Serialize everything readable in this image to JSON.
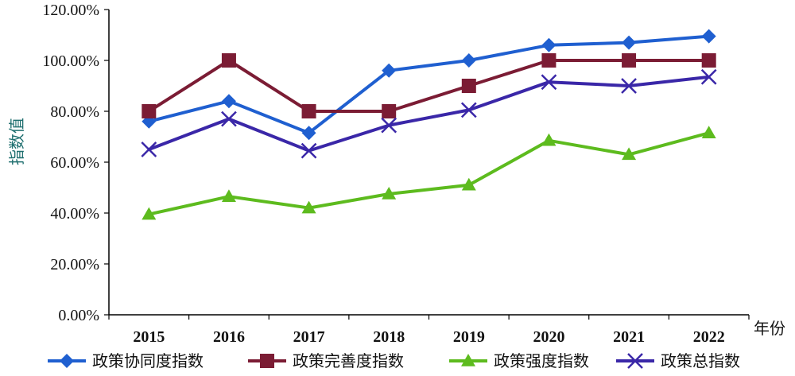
{
  "chart_data": {
    "type": "line",
    "title": "",
    "xlabel": "年份",
    "ylabel": "指数值",
    "categories": [
      "2015",
      "2016",
      "2017",
      "2018",
      "2019",
      "2020",
      "2021",
      "2022"
    ],
    "ylim": [
      0,
      120
    ],
    "yticks": [
      "0.00%",
      "20.00%",
      "40.00%",
      "60.00%",
      "80.00%",
      "100.00%",
      "120.00%"
    ],
    "grid": false,
    "legend_position": "bottom",
    "series": [
      {
        "name": "政策协同度指数",
        "color": "#1f5fd0",
        "marker": "diamond",
        "values": [
          76,
          84,
          71.5,
          96,
          100,
          106,
          107,
          109.5
        ]
      },
      {
        "name": "政策完善度指数",
        "color": "#7b1c34",
        "marker": "square",
        "values": [
          80,
          100,
          80,
          80,
          90,
          100,
          100,
          100
        ]
      },
      {
        "name": "政策强度指数",
        "color": "#5dbb1e",
        "marker": "triangle",
        "values": [
          39.5,
          46.5,
          42,
          47.5,
          51,
          68.5,
          63,
          71.5
        ]
      },
      {
        "name": "政策总指数",
        "color": "#3a27a8",
        "marker": "x",
        "values": [
          65,
          77,
          64.5,
          74.5,
          80.5,
          91.5,
          90,
          93.5
        ]
      }
    ]
  }
}
